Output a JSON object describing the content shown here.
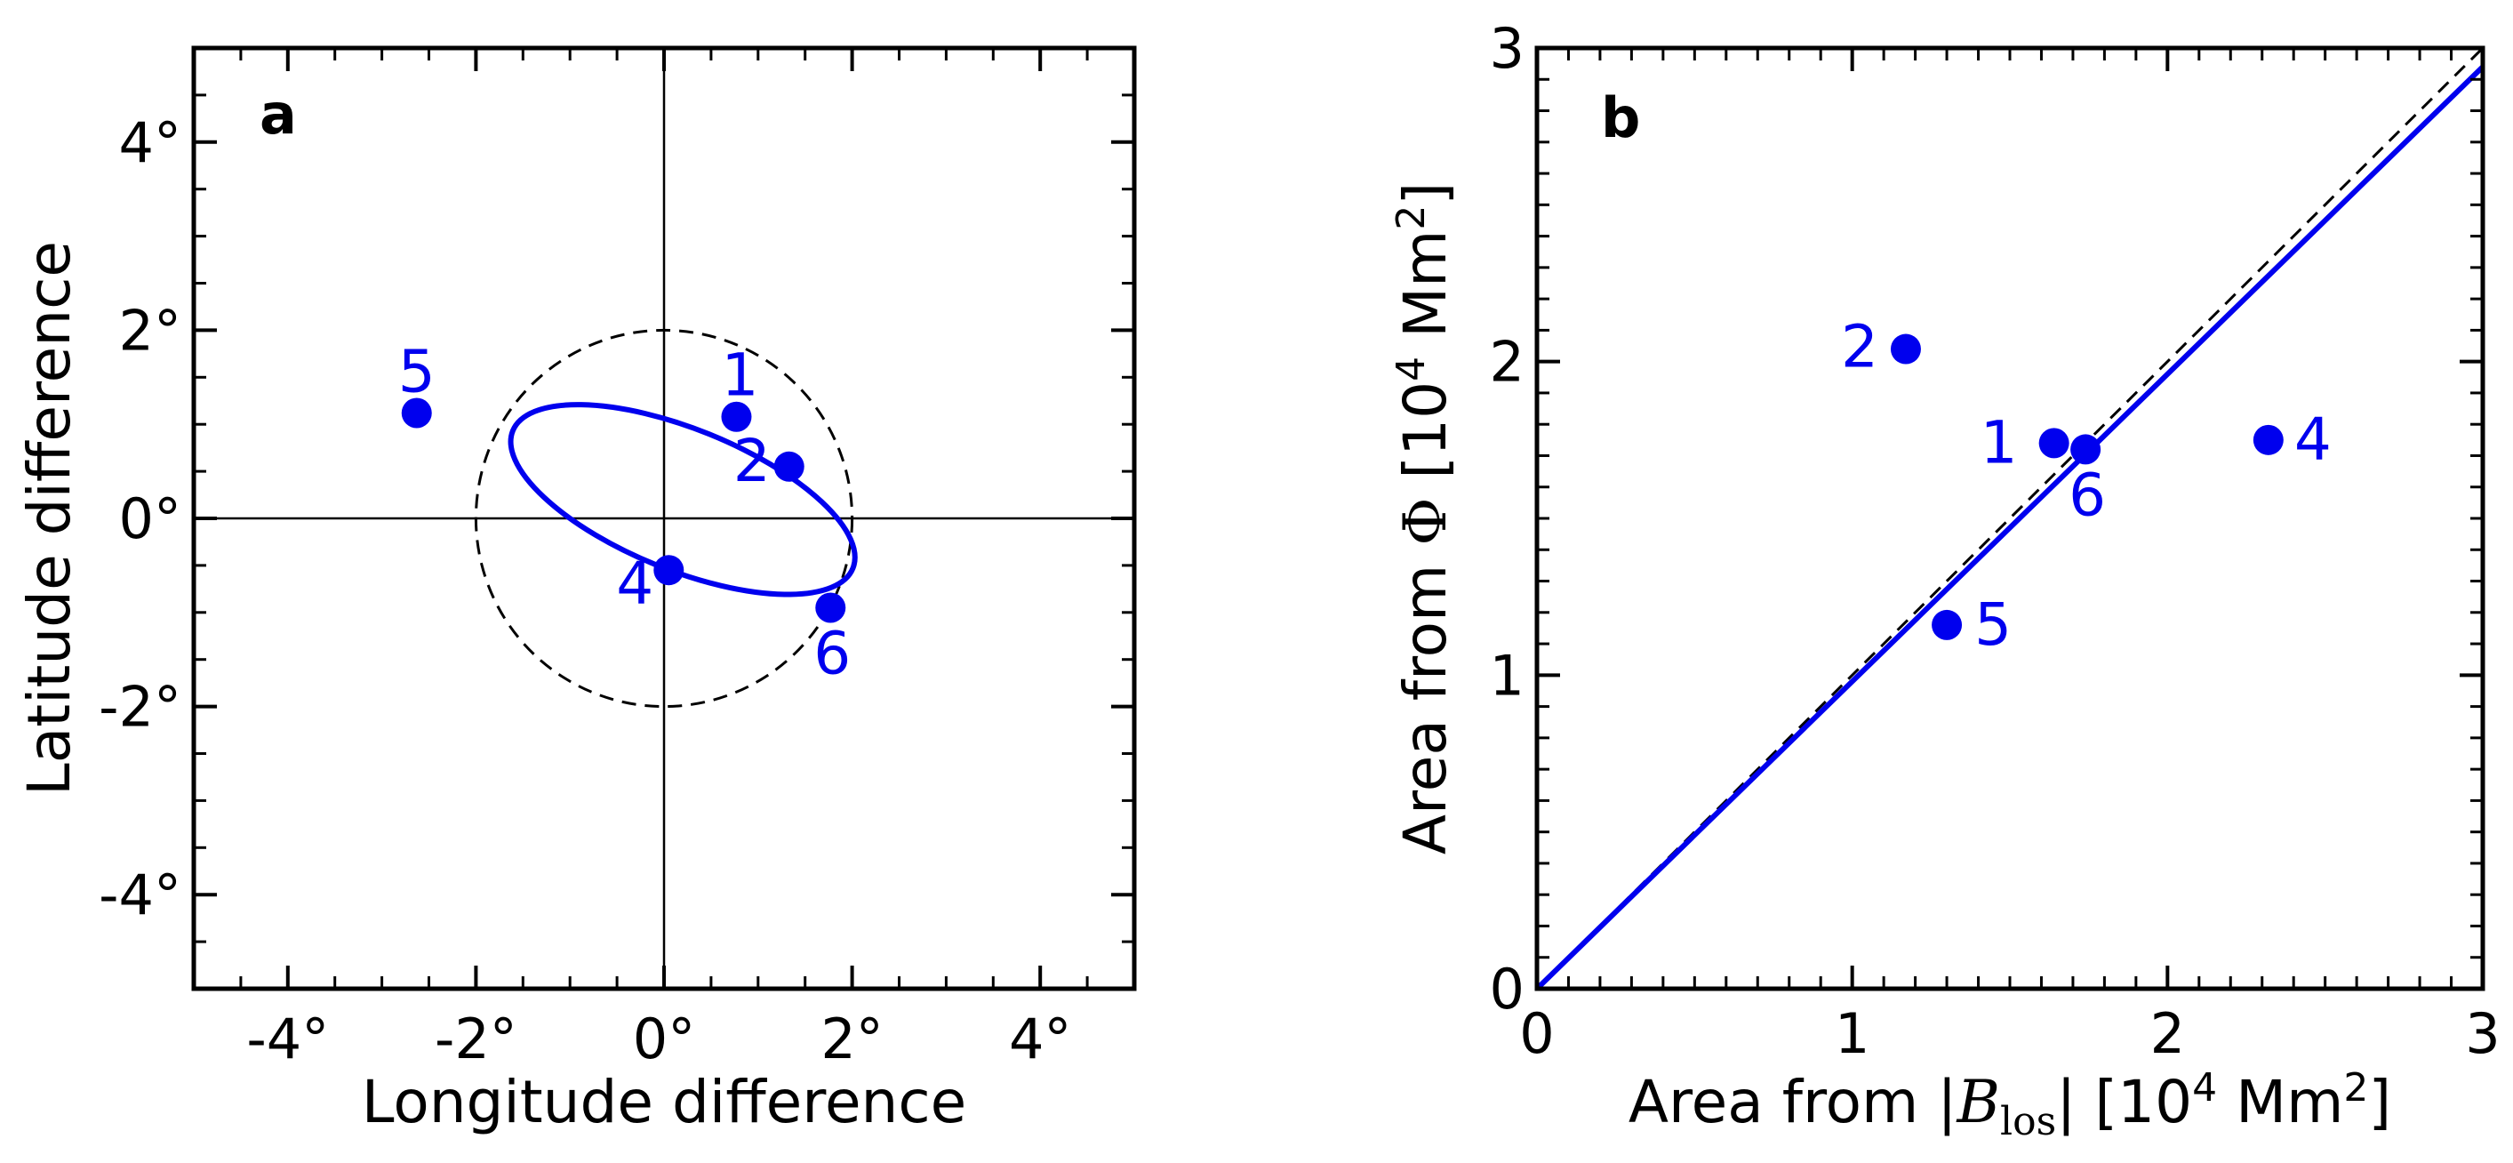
{
  "chart_data": [
    {
      "type": "scatter",
      "panel_label": "a",
      "xlabel": "Longitude difference",
      "ylabel": "Latitude difference",
      "xlim": [
        -5,
        5
      ],
      "ylim": [
        -5,
        5
      ],
      "x_ticks": [
        -4,
        -2,
        0,
        2,
        4
      ],
      "y_ticks": [
        -4,
        -2,
        0,
        2,
        4
      ],
      "x_tick_labels": [
        "-4°",
        "-2°",
        "0°",
        "2°",
        "4°"
      ],
      "y_tick_labels": [
        "-4°",
        "-2°",
        "0°",
        "2°",
        "4°"
      ],
      "points": [
        {
          "label": "5",
          "x": -2.63,
          "y": 1.12
        },
        {
          "label": "1",
          "x": 0.77,
          "y": 1.08
        },
        {
          "label": "2",
          "x": 1.33,
          "y": 0.55
        },
        {
          "label": "4",
          "x": 0.05,
          "y": -0.55
        },
        {
          "label": "6",
          "x": 1.77,
          "y": -0.95
        }
      ],
      "reference_circle": {
        "center": [
          0,
          0
        ],
        "radius": 2,
        "style": "dashed",
        "color": "#000000"
      },
      "fit_ellipse": {
        "center": [
          0.2,
          0.2
        ],
        "semi_major": 1.95,
        "semi_minor": 0.75,
        "angle_deg": -22,
        "color": "#0000ee"
      },
      "crosshair": {
        "x": 0,
        "y": 0
      },
      "point_color": "#0000ee"
    },
    {
      "type": "scatter",
      "panel_label": "b",
      "xlabel_prefix": "Area from ",
      "xlabel_b": "B",
      "xlabel_sub": "los",
      "xlabel_unit_open": " [10",
      "xlabel_exp": "4",
      "xlabel_unit_mid": " Mm",
      "xlabel_exp2": "2",
      "xlabel_unit_close": "]",
      "ylabel_prefix": "Area from ",
      "ylabel_symbol": "Φ",
      "ylabel_unit_open": " [10",
      "ylabel_exp": "4",
      "ylabel_unit_mid": " Mm",
      "ylabel_exp2": "2",
      "ylabel_unit_close": "]",
      "xlim": [
        0,
        3
      ],
      "ylim": [
        0,
        3
      ],
      "x_ticks": [
        0,
        1,
        2,
        3
      ],
      "y_ticks": [
        0,
        1,
        2,
        3
      ],
      "x_tick_labels": [
        "0",
        "1",
        "2",
        "3"
      ],
      "y_tick_labels": [
        "0",
        "1",
        "2",
        "3"
      ],
      "points": [
        {
          "label": "2",
          "x": 1.17,
          "y": 2.04
        },
        {
          "label": "1",
          "x": 1.64,
          "y": 1.74
        },
        {
          "label": "6",
          "x": 1.74,
          "y": 1.72
        },
        {
          "label": "4",
          "x": 2.32,
          "y": 1.75
        },
        {
          "label": "5",
          "x": 1.3,
          "y": 1.16
        }
      ],
      "identity_line": {
        "slope": 1,
        "style": "dashed",
        "color": "#000000"
      },
      "fit_line": {
        "slope": 0.98,
        "intercept": 0,
        "color": "#0000ee"
      },
      "point_color": "#0000ee"
    }
  ]
}
